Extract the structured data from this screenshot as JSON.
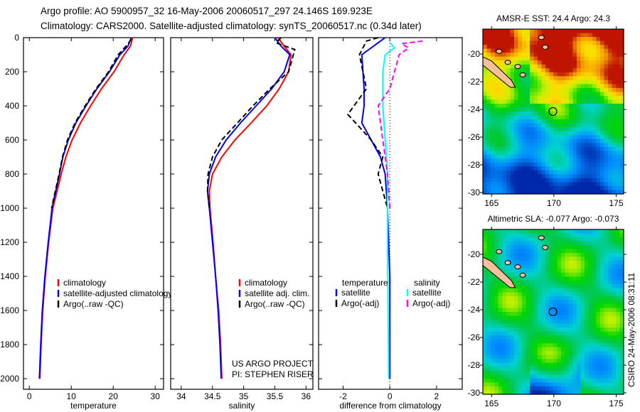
{
  "title_lines": [
    "Argo profile: AO 5900957_32 16-May-2006 20060517_297 24.146S 169.923E",
    "Climatology: CARS2000. Satellite-adjusted climatology: synTS_20060517.nc (0.34d later)"
  ],
  "credit": [
    "US ARGO PROJECT",
    "PI: STEPHEN RISER"
  ],
  "timestamp": "CSIRO 24-May-2006 08:31:11",
  "colors": {
    "climatology": "#ff0000",
    "satellite": "#0000ff",
    "argo": "#000000",
    "sal_satellite": "#00ffff",
    "sal_argo": "#ff00ff"
  },
  "chart_data": [
    {
      "type": "line",
      "name": "temperature",
      "xlabel": "temperature",
      "ylabel": "",
      "xlim": [
        -1.4,
        32
      ],
      "ylim": [
        2062,
        0
      ],
      "xticks": [
        0,
        10,
        20,
        30
      ],
      "yticks": [
        0,
        200,
        400,
        600,
        800,
        1000,
        1200,
        1400,
        1600,
        1800,
        2000
      ],
      "legend": [
        "climatology",
        "satellite-adjusted climatology",
        "Argo(..raw -QC)"
      ],
      "legend_placement": "bottom-right",
      "series": [
        {
          "name": "climatology",
          "style": "solid",
          "color": "#ff0000",
          "points": [
            [
              24.6,
              0
            ],
            [
              24.1,
              50
            ],
            [
              22.6,
              100
            ],
            [
              20.2,
              200
            ],
            [
              17.2,
              300
            ],
            [
              14.6,
              400
            ],
            [
              12.2,
              500
            ],
            [
              10.2,
              600
            ],
            [
              8.7,
              700
            ],
            [
              7.6,
              800
            ],
            [
              6.6,
              900
            ],
            [
              5.6,
              1000
            ],
            [
              4.6,
              1200
            ],
            [
              3.8,
              1400
            ],
            [
              3.2,
              1600
            ],
            [
              2.8,
              1800
            ],
            [
              2.5,
              2000
            ]
          ]
        },
        {
          "name": "satellite-adjusted climatology",
          "style": "solid",
          "color": "#0000ff",
          "points": [
            [
              24.3,
              0
            ],
            [
              23.5,
              50
            ],
            [
              21.6,
              100
            ],
            [
              19.1,
              200
            ],
            [
              16.1,
              300
            ],
            [
              13.5,
              400
            ],
            [
              11.1,
              500
            ],
            [
              9.3,
              600
            ],
            [
              8.0,
              700
            ],
            [
              7.2,
              800
            ],
            [
              6.3,
              900
            ],
            [
              5.4,
              1000
            ],
            [
              4.5,
              1200
            ],
            [
              3.7,
              1400
            ],
            [
              3.1,
              1600
            ],
            [
              2.7,
              1800
            ],
            [
              2.4,
              2000
            ]
          ]
        },
        {
          "name": "Argo(..raw -QC)",
          "style": "dashed",
          "color": "#000000",
          "points": [
            [
              24.3,
              10
            ],
            [
              23.4,
              40
            ],
            [
              21.2,
              100
            ],
            [
              18.9,
              200
            ],
            [
              15.9,
              300
            ],
            [
              13.3,
              400
            ],
            [
              10.9,
              500
            ],
            [
              9.1,
              600
            ],
            [
              7.9,
              700
            ],
            [
              7.1,
              800
            ],
            [
              6.2,
              900
            ],
            [
              5.3,
              1000
            ]
          ]
        }
      ]
    },
    {
      "type": "line",
      "name": "salinity",
      "xlabel": "salinity",
      "ylabel": "",
      "xlim": [
        33.83,
        36.11
      ],
      "ylim": [
        2062,
        0
      ],
      "xticks": [
        34,
        34.5,
        35,
        35.5,
        36
      ],
      "legend": [
        "climatology",
        "satellite adj. clim.",
        "Argo(..raw -QC)"
      ],
      "legend_placement": "bottom-right",
      "series": [
        {
          "name": "climatology",
          "style": "solid",
          "color": "#ff0000",
          "points": [
            [
              35.55,
              0
            ],
            [
              35.65,
              50
            ],
            [
              35.76,
              100
            ],
            [
              35.72,
              200
            ],
            [
              35.57,
              300
            ],
            [
              35.37,
              400
            ],
            [
              35.12,
              500
            ],
            [
              34.86,
              600
            ],
            [
              34.65,
              700
            ],
            [
              34.5,
              800
            ],
            [
              34.45,
              900
            ],
            [
              34.46,
              1000
            ],
            [
              34.51,
              1200
            ],
            [
              34.55,
              1400
            ],
            [
              34.6,
              1600
            ],
            [
              34.63,
              1800
            ],
            [
              34.65,
              2000
            ]
          ]
        },
        {
          "name": "satellite adj. clim.",
          "style": "solid",
          "color": "#0000ff",
          "points": [
            [
              35.5,
              0
            ],
            [
              35.6,
              50
            ],
            [
              35.74,
              100
            ],
            [
              35.65,
              200
            ],
            [
              35.45,
              300
            ],
            [
              35.2,
              400
            ],
            [
              34.95,
              500
            ],
            [
              34.72,
              600
            ],
            [
              34.55,
              700
            ],
            [
              34.45,
              800
            ],
            [
              34.42,
              900
            ],
            [
              34.45,
              1000
            ],
            [
              34.5,
              1200
            ],
            [
              34.55,
              1400
            ],
            [
              34.59,
              1600
            ],
            [
              34.62,
              1800
            ],
            [
              34.64,
              2000
            ]
          ]
        },
        {
          "name": "Argo(..raw -QC)",
          "style": "dashed",
          "color": "#000000",
          "points": [
            [
              35.6,
              0
            ],
            [
              35.52,
              30
            ],
            [
              35.82,
              70
            ],
            [
              35.72,
              200
            ],
            [
              35.42,
              300
            ],
            [
              35.15,
              400
            ],
            [
              34.9,
              500
            ],
            [
              34.65,
              600
            ],
            [
              34.5,
              700
            ],
            [
              34.43,
              800
            ],
            [
              34.42,
              900
            ],
            [
              34.45,
              1000
            ]
          ]
        }
      ]
    },
    {
      "type": "line",
      "name": "difference",
      "xlabel": "difference from climatology",
      "ylabel": "",
      "xlim": [
        -3.05,
        3.1
      ],
      "ylim": [
        2062,
        0
      ],
      "xticks": [
        -2,
        0,
        2
      ],
      "legend_headers": [
        "temperature",
        "salinity"
      ],
      "legend": [
        "satellite",
        "Argo(-adj)",
        "satellite",
        "Argo(-adj)"
      ],
      "legend_placement": "bottom",
      "series": [
        {
          "name": "temperature satellite",
          "style": "solid",
          "color": "#0000ff",
          "points": [
            [
              -0.2,
              0
            ],
            [
              -0.5,
              30
            ],
            [
              -1.2,
              100
            ],
            [
              -1.1,
              300
            ],
            [
              -1.1,
              400
            ],
            [
              -1.2,
              500
            ],
            [
              -0.8,
              600
            ],
            [
              -0.4,
              700
            ],
            [
              -0.2,
              800
            ],
            [
              -0.1,
              1000
            ],
            [
              0,
              1400
            ],
            [
              0,
              2000
            ]
          ]
        },
        {
          "name": "temperature Argo(-adj)",
          "style": "dashed",
          "color": "#000000",
          "points": [
            [
              -0.5,
              0
            ],
            [
              -1.0,
              20
            ],
            [
              -1.3,
              100
            ],
            [
              -1.0,
              300
            ],
            [
              -1.8,
              450
            ],
            [
              -0.8,
              600
            ],
            [
              -0.3,
              700
            ],
            [
              -0.5,
              800
            ],
            [
              -0.1,
              1000
            ]
          ]
        },
        {
          "name": "salinity satellite",
          "style": "solid",
          "color": "#00ffff",
          "points": [
            [
              0,
              30
            ],
            [
              0.2,
              60
            ],
            [
              -0.2,
              100
            ],
            [
              -0.3,
              200
            ],
            [
              -0.3,
              400
            ],
            [
              -0.2,
              600
            ],
            [
              -0.1,
              800
            ],
            [
              -0.1,
              1200
            ],
            [
              -0.05,
              2000
            ]
          ]
        },
        {
          "name": "salinity Argo(-adj)",
          "style": "dashed",
          "color": "#ff00ff",
          "points": [
            [
              1.4,
              20
            ],
            [
              0.5,
              35
            ],
            [
              0.8,
              60
            ],
            [
              0.4,
              100
            ],
            [
              0,
              300
            ],
            [
              -0.5,
              400
            ],
            [
              -0.3,
              600
            ],
            [
              -0.1,
              800
            ],
            [
              0,
              1000
            ]
          ]
        }
      ]
    },
    {
      "type": "heatmap",
      "name": "sst-map",
      "title": "AMSR-E SST: 24.4 Argo: 24.3",
      "xlim": [
        164.3,
        175.6
      ],
      "ylim": [
        -30.1,
        -18.2
      ],
      "xticks": [
        165,
        170,
        175
      ],
      "yticks": [
        -20,
        -22,
        -24,
        -26,
        -28,
        -30
      ],
      "marker": [
        169.923,
        -24.146
      ]
    },
    {
      "type": "heatmap",
      "name": "sla-map",
      "title": "Altimetric SLA: -0.077 Argo: -0.073",
      "xlim": [
        164.3,
        175.6
      ],
      "ylim": [
        -30.1,
        -18.2
      ],
      "xticks": [
        165,
        170,
        175
      ],
      "yticks": [
        -20,
        -22,
        -24,
        -26,
        -28,
        -30
      ],
      "marker": [
        169.923,
        -24.146
      ]
    }
  ]
}
